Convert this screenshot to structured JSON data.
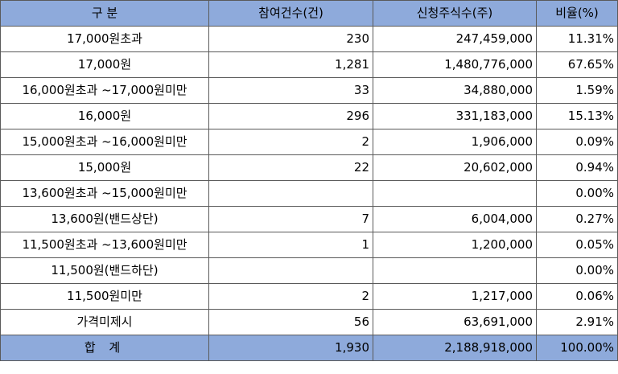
{
  "table": {
    "headers": [
      "구  분",
      "참여건수(건)",
      "신청주식수(주)",
      "비율(%)"
    ],
    "rows": [
      {
        "label": "17,000원초과",
        "count": "230",
        "shares": "247,459,000",
        "ratio": "11.31%"
      },
      {
        "label": "17,000원",
        "count": "1,281",
        "shares": "1,480,776,000",
        "ratio": "67.65%"
      },
      {
        "label": "16,000원초과 ~17,000원미만",
        "count": "33",
        "shares": "34,880,000",
        "ratio": "1.59%"
      },
      {
        "label": "16,000원",
        "count": "296",
        "shares": "331,183,000",
        "ratio": "15.13%"
      },
      {
        "label": "15,000원초과 ~16,000원미만",
        "count": "2",
        "shares": "1,906,000",
        "ratio": "0.09%"
      },
      {
        "label": "15,000원",
        "count": "22",
        "shares": "20,602,000",
        "ratio": "0.94%"
      },
      {
        "label": "13,600원초과 ~15,000원미만",
        "count": "",
        "shares": "",
        "ratio": "0.00%"
      },
      {
        "label": "13,600원(밴드상단)",
        "count": "7",
        "shares": "6,004,000",
        "ratio": "0.27%"
      },
      {
        "label": "11,500원초과 ~13,600원미만",
        "count": "1",
        "shares": "1,200,000",
        "ratio": "0.05%"
      },
      {
        "label": "11,500원(밴드하단)",
        "count": "",
        "shares": "",
        "ratio": "0.00%"
      },
      {
        "label": "11,500원미만",
        "count": "2",
        "shares": "1,217,000",
        "ratio": "0.06%"
      },
      {
        "label": "가격미제시",
        "count": "56",
        "shares": "63,691,000",
        "ratio": "2.91%"
      }
    ],
    "total": {
      "label": "합 계",
      "count": "1,930",
      "shares": "2,188,918,000",
      "ratio": "100.00%"
    }
  }
}
